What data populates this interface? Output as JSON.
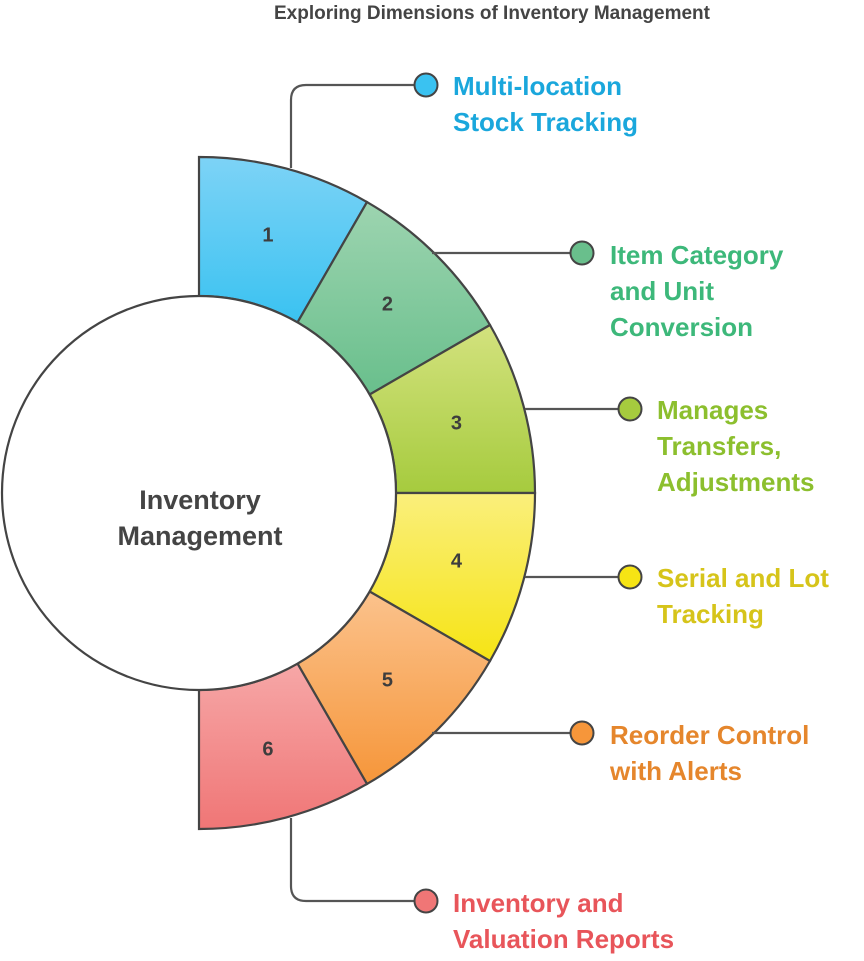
{
  "title": "Exploring Dimensions of Inventory Management",
  "center": {
    "line1": "Inventory",
    "line2": "Management"
  },
  "segments": [
    {
      "number": "1",
      "lines": [
        "Multi-location",
        "Stock Tracking"
      ],
      "text_color": "#1aa7dc",
      "fill_top": "#7dd3f6",
      "fill_bottom": "#3ac2f1"
    },
    {
      "number": "2",
      "lines": [
        "Item Category",
        "and Unit",
        "Conversion"
      ],
      "text_color": "#3db87a",
      "fill_top": "#9dd4b0",
      "fill_bottom": "#69bf8c"
    },
    {
      "number": "3",
      "lines": [
        "Manages",
        "Transfers,",
        "Adjustments"
      ],
      "text_color": "#8cbf2e",
      "fill_top": "#d3e27e",
      "fill_bottom": "#a6cb3e"
    },
    {
      "number": "4",
      "lines": [
        "Serial and Lot",
        "Tracking"
      ],
      "text_color": "#d6c41a",
      "fill_top": "#faef7c",
      "fill_bottom": "#f6e414"
    },
    {
      "number": "5",
      "lines": [
        "Reorder Control",
        "with Alerts"
      ],
      "text_color": "#e5862c",
      "fill_top": "#fbc28c",
      "fill_bottom": "#f6963a"
    },
    {
      "number": "6",
      "lines": [
        "Inventory and",
        "Valuation Reports"
      ],
      "text_color": "#e8555a",
      "fill_top": "#f6a7a7",
      "fill_bottom": "#f07676"
    }
  ]
}
